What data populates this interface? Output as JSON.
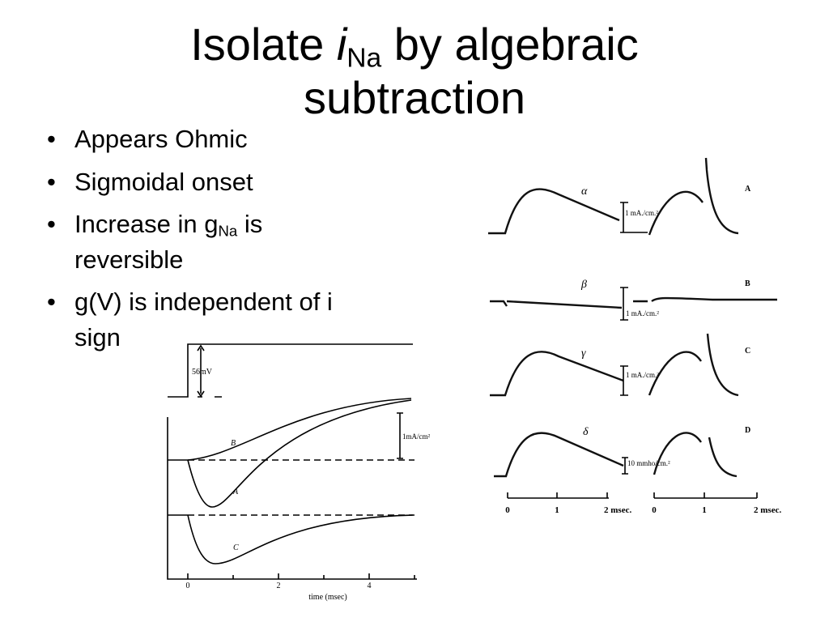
{
  "title": {
    "before": "Isolate",
    "italic": "i",
    "subscript": "Na",
    "after": "by algebraic",
    "line2": "subtraction"
  },
  "bullets": [
    {
      "text": "Appears Ohmic"
    },
    {
      "text": "Sigmoidal onset"
    },
    {
      "before": "Increase in g",
      "subscript": "Na",
      "after": "is",
      "line2": "reversible"
    },
    {
      "text": "g(V) is independent of i",
      "line2": "sign"
    }
  ],
  "left_figure": {
    "step_label": "56mV",
    "scale_label": "1mA/cm²",
    "curve_labels": [
      "B",
      "A",
      "C"
    ],
    "time_ticks": [
      "0",
      "2",
      "4"
    ],
    "time_label": "time (msec)"
  },
  "right_figure": {
    "rows": [
      {
        "greek": "α",
        "letter": "A",
        "scale": "1 mA./cm.²"
      },
      {
        "greek": "β",
        "letter": "B",
        "scale": "1 mA./cm.²"
      },
      {
        "greek": "γ",
        "letter": "C",
        "scale": "1 mA./cm.²"
      },
      {
        "greek": "δ",
        "letter": "D",
        "scale": "10 mmho/cm.²"
      }
    ],
    "axis_left": [
      "0",
      "1",
      "2 msec."
    ],
    "axis_right": [
      "0",
      "1",
      "2 msec."
    ]
  }
}
